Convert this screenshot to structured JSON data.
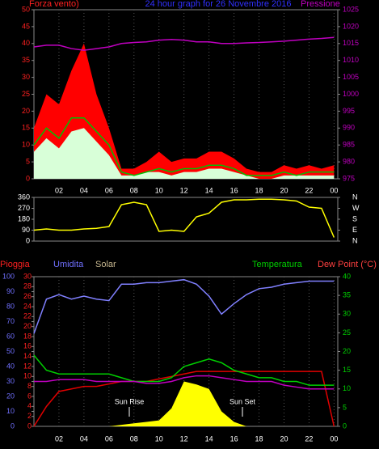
{
  "chart_data": [
    {
      "type": "line",
      "title": "24 hour graph for  26 Novembre 2016",
      "y_label": "Forza vento)",
      "y_label_color": "#ff2020",
      "y2_label": "Pressione",
      "y2_label_color": "#c000c0",
      "title_color": "#3030ff",
      "x": [
        0,
        1,
        2,
        3,
        4,
        5,
        6,
        7,
        8,
        9,
        10,
        11,
        12,
        13,
        14,
        15,
        16,
        17,
        18,
        19,
        20,
        21,
        22,
        23,
        24
      ],
      "xlim": [
        0,
        24.3
      ],
      "xticks": [
        {
          "value": 2,
          "label": "02"
        },
        {
          "value": 4,
          "label": "04"
        },
        {
          "value": 6,
          "label": "06"
        },
        {
          "value": 8,
          "label": "08"
        },
        10,
        12,
        14,
        16,
        18,
        20,
        22,
        {
          "value": 24,
          "label": "00"
        }
      ],
      "ylim": [
        0,
        50
      ],
      "yticks": [
        0,
        5,
        10,
        15,
        20,
        25,
        30,
        35,
        40,
        45,
        50
      ],
      "ytick_color": "#ff2020",
      "y2lim": [
        975,
        1025
      ],
      "y2ticks": [
        975,
        980,
        985,
        990,
        995,
        1000,
        1005,
        1010,
        1015,
        1020,
        1025
      ],
      "y2tick_color": "#c000c0",
      "grid": true,
      "series": [
        {
          "color": "#ff0000",
          "style": "area",
          "values": [
            15,
            25,
            22,
            32,
            40,
            25,
            15,
            3,
            3,
            5,
            8,
            5,
            6,
            6,
            8,
            8,
            6,
            3,
            2,
            2,
            4,
            3,
            4,
            3,
            4
          ]
        },
        {
          "color": "#d8ffd8",
          "style": "area",
          "values": [
            8,
            12,
            9,
            14,
            15,
            11,
            7,
            1,
            1,
            2,
            2,
            1,
            2,
            2,
            3,
            3,
            2,
            1,
            0,
            0,
            1,
            1,
            1,
            1,
            1
          ]
        },
        {
          "color": "#00c000",
          "values": [
            10,
            15,
            12,
            18,
            18,
            14,
            10,
            2,
            1,
            2,
            3,
            2,
            3,
            3,
            4,
            4,
            3,
            1,
            1,
            1,
            2,
            1,
            2,
            2,
            2
          ]
        },
        {
          "color": "#c000c0",
          "axis": "y2",
          "values": [
            1014,
            1014.5,
            1014.5,
            1013.5,
            1013,
            1013.5,
            1014,
            1015,
            1015.3,
            1015.5,
            1016,
            1016.2,
            1016,
            1015.5,
            1015.5,
            1015,
            1015,
            1015.2,
            1015.3,
            1015.5,
            1015.7,
            1016,
            1016.3,
            1016.5,
            1016.8
          ]
        }
      ]
    },
    {
      "type": "line",
      "x": [
        0,
        1,
        2,
        3,
        4,
        5,
        6,
        7,
        8,
        9,
        10,
        11,
        12,
        13,
        14,
        15,
        16,
        17,
        18,
        19,
        20,
        21,
        22,
        23,
        24
      ],
      "xlim": [
        0,
        24.3
      ],
      "ylim": [
        0,
        360
      ],
      "yticks": [
        0,
        90,
        180,
        270,
        360
      ],
      "ytick_color": "#ffffff",
      "y2lim": [
        0,
        360
      ],
      "y2ticks": [
        {
          "value": 360,
          "label": "N"
        },
        {
          "value": 270,
          "label": "W"
        },
        {
          "value": 180,
          "label": "S"
        },
        {
          "value": 90,
          "label": "E"
        },
        {
          "value": 0,
          "label": "N"
        }
      ],
      "y2tick_color": "#ffffff",
      "grid": false,
      "series": [
        {
          "color": "#ffff00",
          "values": [
            90,
            100,
            90,
            90,
            100,
            105,
            120,
            300,
            320,
            300,
            80,
            90,
            80,
            200,
            230,
            320,
            340,
            340,
            345,
            345,
            340,
            330,
            280,
            270,
            30
          ]
        }
      ]
    },
    {
      "type": "line",
      "x": [
        0,
        1,
        2,
        3,
        4,
        5,
        6,
        7,
        8,
        9,
        10,
        11,
        12,
        13,
        14,
        15,
        16,
        17,
        18,
        19,
        20,
        21,
        22,
        23,
        24
      ],
      "xlim": [
        0,
        24.3
      ],
      "xticks": [
        {
          "value": 2,
          "label": "02"
        },
        {
          "value": 4,
          "label": "04"
        },
        {
          "value": 6,
          "label": "06"
        },
        {
          "value": 8,
          "label": "08"
        },
        10,
        12,
        14,
        16,
        18,
        20,
        22,
        {
          "value": 24,
          "label": "00"
        }
      ],
      "ylim": [
        0,
        100
      ],
      "yticks": [
        0,
        10,
        20,
        30,
        40,
        50,
        60,
        70,
        80,
        90,
        100
      ],
      "ytick_color": "#7070ff",
      "y3lim": [
        0,
        30
      ],
      "y3ticks": [
        0,
        2,
        4,
        6,
        8,
        10,
        12,
        14,
        16,
        18,
        20,
        22,
        24,
        26,
        28,
        30
      ],
      "y3tick_color": "#ff2020",
      "y2lim": [
        0,
        40
      ],
      "y2ticks": [
        0,
        5,
        10,
        15,
        20,
        25,
        30,
        35,
        40
      ],
      "y2tick_color": "#00d000",
      "grid": true,
      "annotations": [
        "Sun Rise",
        "Sun Set"
      ],
      "series": [
        {
          "name": "Solar",
          "color": "#ffff00",
          "label_color": "#c8b890",
          "style": "area",
          "values": [
            0,
            0,
            0,
            0,
            0,
            0,
            0,
            1,
            2,
            3,
            4,
            12,
            30,
            28,
            25,
            10,
            3,
            0,
            0,
            0,
            0,
            0,
            0,
            0,
            0
          ]
        },
        {
          "name": "Pioggia",
          "color": "#e00000",
          "label_color": "#ff2020",
          "axis": "y3",
          "values": [
            0,
            4,
            7,
            7.5,
            8,
            8,
            8.5,
            9,
            9,
            9,
            9.5,
            10,
            10.5,
            11,
            11,
            11,
            11,
            11,
            11,
            11,
            11,
            11,
            11,
            11,
            0
          ]
        },
        {
          "name": "Umidita",
          "color": "#8080ff",
          "label_color": "#7070ff",
          "values": [
            62,
            85,
            88,
            85,
            87,
            85,
            84,
            95,
            95,
            96,
            96,
            97,
            98,
            95,
            87,
            75,
            82,
            88,
            92,
            93,
            95,
            96,
            97,
            97,
            97
          ]
        },
        {
          "name": "Temperatura",
          "color": "#00d000",
          "label_color": "#00d000",
          "axis": "y2",
          "values": [
            19,
            15,
            14,
            14,
            14,
            14,
            14,
            13,
            12,
            12,
            12,
            13,
            16,
            17,
            18,
            17,
            15,
            14,
            13,
            13,
            12,
            12,
            11,
            11,
            11
          ]
        },
        {
          "name": "Dew Point (°C)",
          "color": "#c000c0",
          "label_color": "#ff4040",
          "axis": "y2",
          "values": [
            12,
            12,
            12.5,
            12.5,
            12.5,
            12,
            12,
            12,
            12,
            11.5,
            11.5,
            12,
            13,
            13.5,
            13.5,
            13,
            12.5,
            12,
            12,
            12,
            11,
            10.5,
            10,
            10,
            10
          ]
        }
      ]
    }
  ]
}
